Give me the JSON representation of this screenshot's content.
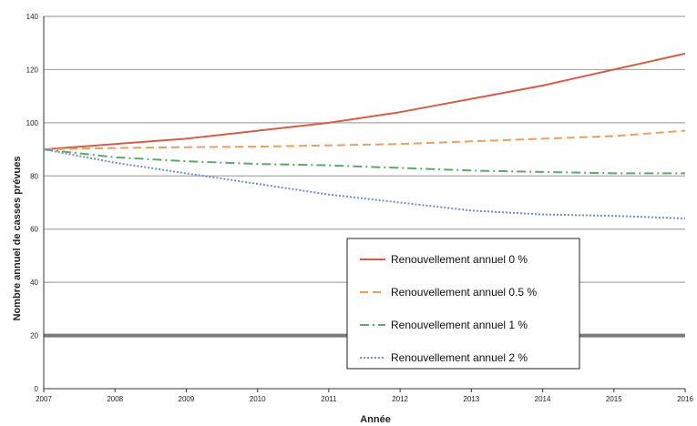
{
  "chart_data": {
    "type": "line",
    "xlabel": "Année",
    "ylabel": "Nombre annuel de casses prévues",
    "x": [
      2007,
      2008,
      2009,
      2010,
      2011,
      2012,
      2013,
      2014,
      2015,
      2016
    ],
    "xlim": [
      2007,
      2016
    ],
    "ylim": [
      0,
      140
    ],
    "yticks": [
      0,
      20,
      40,
      60,
      80,
      100,
      120,
      140
    ],
    "grid": true,
    "highlighted_gridline": 20,
    "legend_position": "bottom-right",
    "series": [
      {
        "name": "Renouvellement annuel 0 %",
        "color": "#d0604a",
        "style": "solid",
        "values": [
          90,
          92,
          94,
          97,
          100,
          104,
          109,
          114,
          120,
          126
        ]
      },
      {
        "name": "Renouvellement annuel 0.5 %",
        "color": "#e8a060",
        "style": "dashed",
        "values": [
          90,
          90.5,
          90.8,
          91,
          91.5,
          92,
          93,
          94,
          95,
          97
        ]
      },
      {
        "name": "Renouvellement annuel 1 %",
        "color": "#5fa86a",
        "style": "dashdot",
        "values": [
          90,
          87,
          85.5,
          84.5,
          84,
          83,
          82,
          81.5,
          81,
          81
        ]
      },
      {
        "name": "Renouvellement annuel 2 %",
        "color": "#6a8fd0",
        "style": "dotted",
        "values": [
          90,
          85,
          81,
          77,
          73,
          70,
          67,
          65.5,
          65,
          64
        ]
      }
    ]
  }
}
